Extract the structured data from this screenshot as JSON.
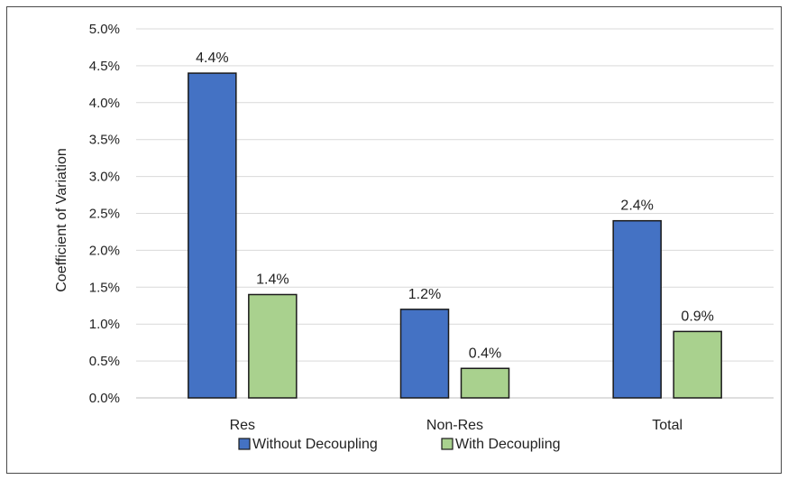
{
  "chart_data": {
    "type": "bar",
    "title": "",
    "xlabel": "",
    "ylabel": "Coefficient of Variation",
    "categories": [
      "Res",
      "Non-Res",
      "Total"
    ],
    "series": [
      {
        "name": "Without Decoupling",
        "values": [
          4.4,
          1.2,
          2.4
        ],
        "labels": [
          "4.4%",
          "1.2%",
          "2.4%"
        ],
        "color": "#4472c4"
      },
      {
        "name": "With Decoupling",
        "values": [
          1.4,
          0.4,
          0.9
        ],
        "labels": [
          "1.4%",
          "0.4%",
          "0.9%"
        ],
        "color": "#a9d18e"
      }
    ],
    "ylim": [
      0,
      5
    ],
    "yticks": [
      "0.0%",
      "0.5%",
      "1.0%",
      "1.5%",
      "2.0%",
      "2.5%",
      "3.0%",
      "3.5%",
      "4.0%",
      "4.5%",
      "5.0%"
    ],
    "grid": true,
    "legend_position": "bottom"
  }
}
